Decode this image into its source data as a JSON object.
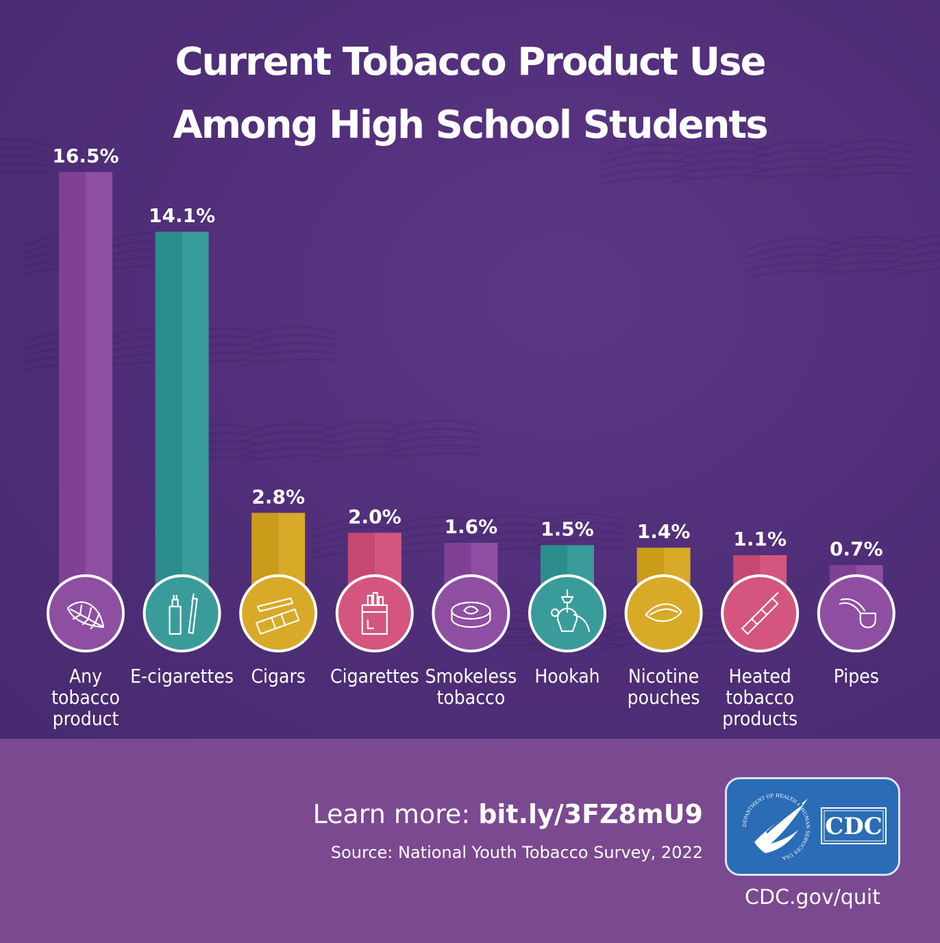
{
  "title_lines": [
    "Current Tobacco Product Use",
    "Among High School Students"
  ],
  "footer": {
    "learn_prefix": "Learn more: ",
    "learn_link": "bit.ly/3FZ8mU9",
    "source": "Source: National Youth Tobacco Survey, 2022",
    "logo_text": "CDC",
    "logo_ring_text": "DEPARTMENT OF HEALTH & HUMAN SERVICES USA",
    "url": "CDC.gov/quit"
  },
  "colors": {
    "purple": "#8e4fa3",
    "teal": "#3a9c9a",
    "yellow": "#d9a928",
    "pink": "#d4567e",
    "background": "#4f2e78",
    "footer_background": "#7b4990"
  },
  "chart_data": {
    "type": "bar",
    "title": "Current Tobacco Product Use Among High School Students",
    "unit": "%",
    "ylim": [
      0,
      16.5
    ],
    "categories": [
      [
        "Any",
        "tobacco",
        "product"
      ],
      [
        "E-cigarettes"
      ],
      [
        "Cigars"
      ],
      [
        "Cigarettes"
      ],
      [
        "Smokeless",
        "tobacco"
      ],
      [
        "Hookah"
      ],
      [
        "Nicotine",
        "pouches"
      ],
      [
        "Heated",
        "tobacco",
        "products"
      ],
      [
        "Pipes"
      ]
    ],
    "values": [
      16.5,
      14.1,
      2.8,
      2.0,
      1.6,
      1.5,
      1.4,
      1.1,
      0.7
    ],
    "value_labels": [
      "16.5%",
      "14.1%",
      "2.8%",
      "2.0%",
      "1.6%",
      "1.5%",
      "1.4%",
      "1.1%",
      "0.7%"
    ],
    "bar_colors": [
      "#8e4fa3",
      "#3a9c9a",
      "#d9a928",
      "#d4567e",
      "#8e4fa3",
      "#3a9c9a",
      "#d9a928",
      "#d4567e",
      "#8e4fa3"
    ],
    "icons": [
      "tobacco-leaf-icon",
      "e-cigarette-icon",
      "cigar-icon",
      "cigarette-pack-icon",
      "smokeless-tin-icon",
      "hookah-icon",
      "nicotine-pouch-icon",
      "heated-tobacco-device-icon",
      "pipe-icon"
    ]
  }
}
